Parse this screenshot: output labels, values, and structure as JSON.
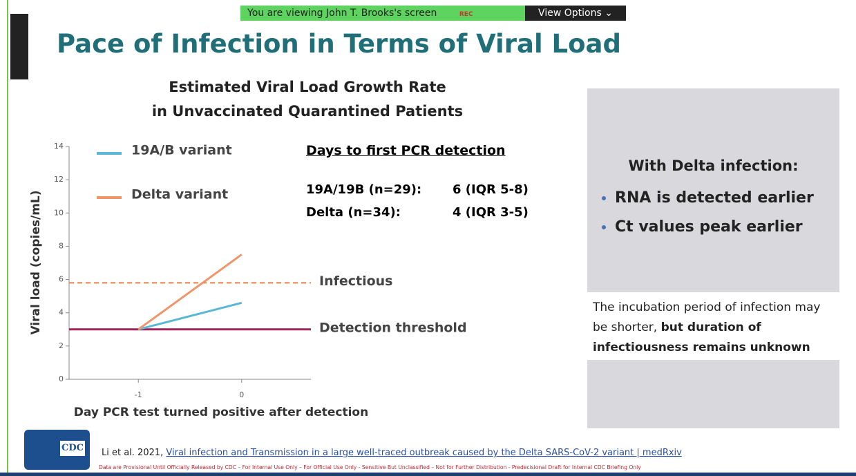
{
  "banner": {
    "viewing": "You are viewing John T. Brooks's screen",
    "rec": "REC",
    "options": "View Options"
  },
  "slide": {
    "title": "Pace of Infection in Terms of Viral Load"
  },
  "chart_data": {
    "type": "line",
    "title": [
      "Estimated Viral Load Growth Rate",
      "in Unvaccinated Quarantined Patients"
    ],
    "x_label": "Day PCR test turned positive after detection",
    "y_label": "Viral load (copies/mL)",
    "x": [
      -1,
      0
    ],
    "series": [
      {
        "name": "19A/B variant",
        "color": "#5bb8d4",
        "values": [
          3,
          4.6
        ]
      },
      {
        "name": "Delta variant",
        "color": "#f0956a",
        "values": [
          3,
          7.5
        ]
      }
    ],
    "hlines": [
      {
        "label": "Infectious",
        "value": 5.8,
        "color": "#e8804a",
        "style": "dashed"
      },
      {
        "label": "Detection threshold",
        "value": 3,
        "color": "#a0245a",
        "style": "solid"
      }
    ],
    "xlim": [
      -1.67,
      0.67
    ],
    "xticks": [
      -1,
      0
    ],
    "ylim": [
      0,
      14
    ],
    "yticks": [
      0,
      2,
      4,
      6,
      8,
      10,
      12,
      14
    ]
  },
  "days_table": {
    "heading": "Days to first PCR detection",
    "rows": [
      [
        "19A/19B (n=29):",
        "6 (IQR 5-8)"
      ],
      [
        "Delta (n=34):",
        "4 (IQR 3-5)"
      ]
    ]
  },
  "side_box": {
    "heading": "With Delta infection:",
    "bullets": [
      "RNA is detected earlier",
      "Ct values peak earlier"
    ],
    "note": "The incubation period of infection may be shorter, ",
    "note_bold": "but duration of infectiousness remains unknown"
  },
  "footer": {
    "logo": "CDC",
    "citation": "Li et al. 2021, ",
    "link": "Viral infection and Transmission in a large well-traced outbreak caused by the Delta SARS-CoV-2 variant | medRxiv",
    "disclaimer": "Data are Provisional Until Officially Released by CDC – For Internal Use Only – For Official Use Only - Sensitive But Unclassified – Not for Further Distribution - Predecisional Draft for Internal CDC Briefing Only"
  }
}
